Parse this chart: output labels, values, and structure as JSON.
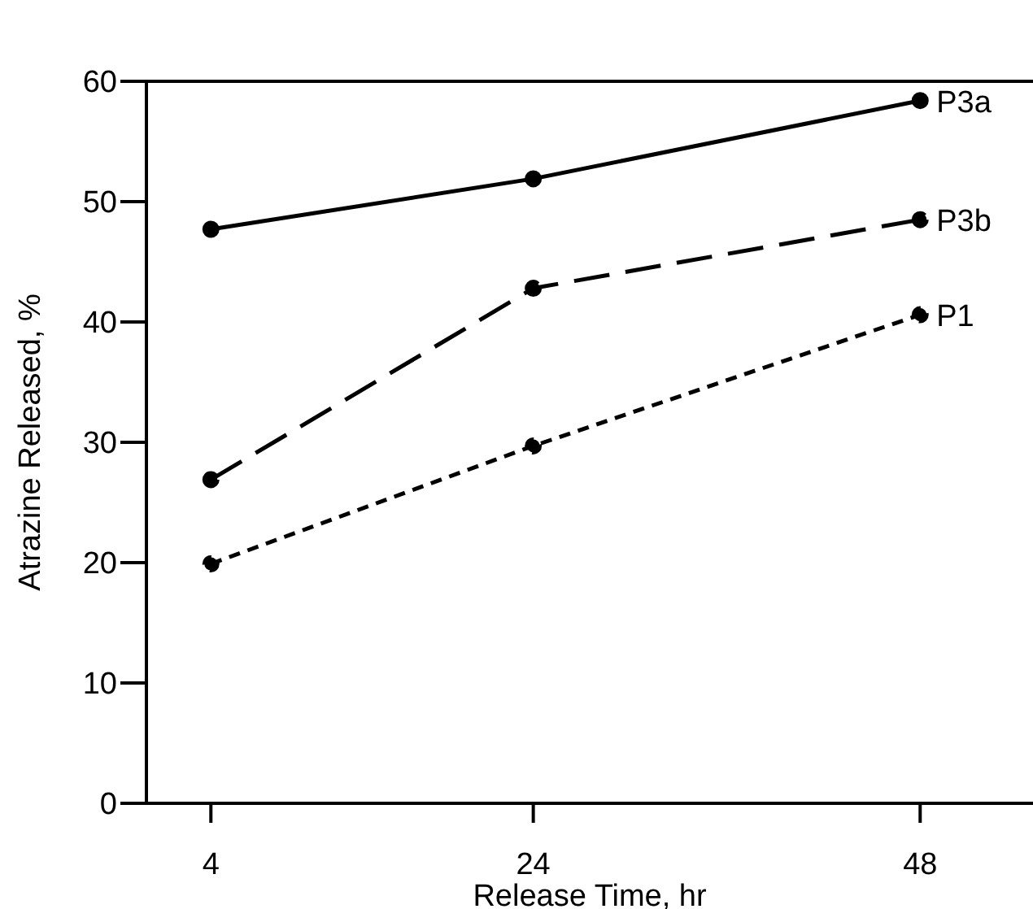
{
  "chart_data": {
    "type": "line",
    "xlabel": "Release Time, hr",
    "ylabel": "Atrazine Released, %",
    "x": [
      4,
      24,
      48
    ],
    "xlim": [
      0,
      55
    ],
    "xticks": [
      4,
      24,
      48
    ],
    "ylim": [
      0,
      60
    ],
    "yticks": [
      0,
      10,
      20,
      30,
      40,
      50,
      60
    ],
    "marker": "circle",
    "grid": false,
    "legend": false,
    "series": [
      {
        "name": "P3a",
        "color": "#000000",
        "line_style": "solid",
        "values": [
          47.7,
          51.9,
          58.4
        ]
      },
      {
        "name": "P3b",
        "color": "#000000",
        "line_style": "dashed",
        "values": [
          26.9,
          42.8,
          48.5
        ]
      },
      {
        "name": "P1",
        "color": "#000000",
        "line_style": "dotted",
        "values": [
          19.9,
          29.7,
          40.6
        ]
      }
    ]
  }
}
